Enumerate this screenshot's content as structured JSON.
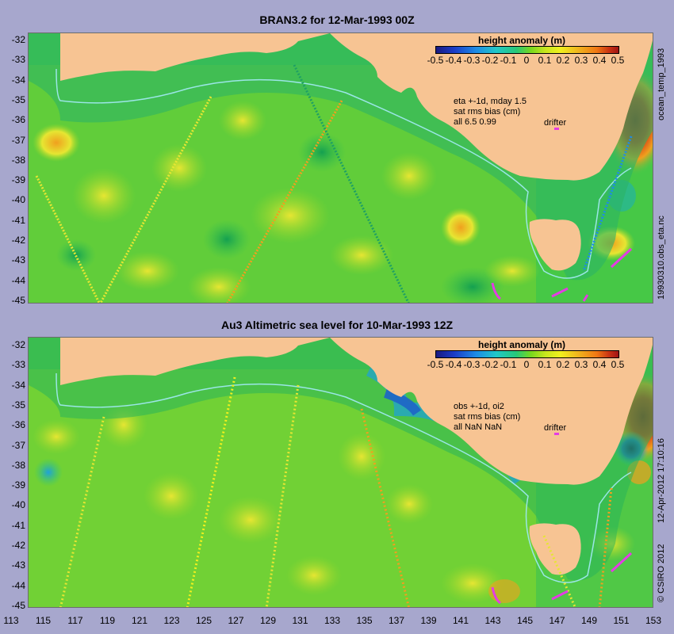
{
  "panels": [
    {
      "title": "BRAN3.2 for 12-Mar-1993 00Z",
      "legend_title": "height anomaly (m)",
      "annotation": [
        "eta +-1d, mday 1.5",
        "sat rms bias (cm)",
        "all 6.5 0.99"
      ],
      "drifter_label": "drifter",
      "side_label_top": "ocean_temp_1993",
      "side_label_bottom": "19930310.obs_eta.nc"
    },
    {
      "title": "Au3 Altimetric sea level  for 10-Mar-1993 12Z",
      "legend_title": "height anomaly (m)",
      "annotation": [
        "obs +-1d, oi2",
        "sat rms bias (cm)",
        "all NaN NaN"
      ],
      "drifter_label": "drifter",
      "side_label_top": "12-Apr-2012 17:10:16",
      "side_label_bottom": "© CSIRO 2012"
    }
  ],
  "colorbar_ticks": [
    "-0.5",
    "-0.4",
    "-0.3",
    "-0.2",
    "-0.1",
    "0",
    "0.1",
    "0.2",
    "0.3",
    "0.4",
    "0.5"
  ],
  "y_ticks": [
    "-32",
    "-33",
    "-34",
    "-35",
    "-36",
    "-37",
    "-38",
    "-39",
    "-40",
    "-41",
    "-42",
    "-43",
    "-44",
    "-45"
  ],
  "x_ticks": [
    "113",
    "115",
    "117",
    "119",
    "121",
    "123",
    "125",
    "127",
    "129",
    "131",
    "133",
    "135",
    "137",
    "139",
    "141",
    "143",
    "145",
    "147",
    "149",
    "151",
    "153"
  ],
  "colors": {
    "land": "#f7c493",
    "background": "#a7a7cd",
    "ocean_base": "#3cc850",
    "shelf_line": "#9ae6e6",
    "drifter": "#e43ce4"
  }
}
